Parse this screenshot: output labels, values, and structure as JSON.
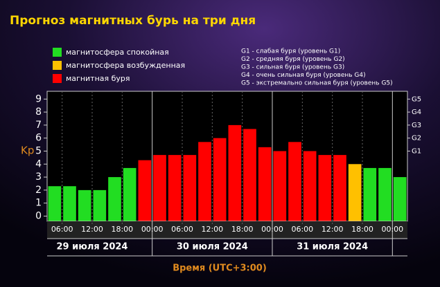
{
  "chart_data": {
    "type": "bar",
    "title": "Прогноз магнитных бурь на три дня",
    "ylabel": "Kp",
    "xlabel": "Время (UTC+3:00)",
    "legend": [
      {
        "name": "магнитосфера спокойная",
        "color": "#22dd22"
      },
      {
        "name": "магнитосфера возбужденная",
        "color": "#ffc000"
      },
      {
        "name": "магнитная буря",
        "color": "#ff0000"
      }
    ],
    "storm_levels": [
      "G1 - слабая буря (уровень G1)",
      "G2 - средняя буря (уровень G2)",
      "G3 - сильная буря (уровень G3)",
      "G4 - очень сильная буря (уровень G4)",
      "G5 - экстремально сильная буря (уровень G5)"
    ],
    "days": [
      "29 июля 2024",
      "30 июля 2024",
      "31 июля 2024"
    ],
    "values": [
      2.3,
      2.3,
      2.0,
      2.0,
      3.0,
      3.7,
      4.3,
      4.7,
      4.7,
      4.7,
      5.7,
      6.0,
      7.0,
      6.7,
      5.3,
      5.0,
      5.7,
      5.0,
      4.7,
      4.7,
      4.0,
      3.7,
      3.7,
      3.0
    ],
    "bar_colors": [
      "#22dd22",
      "#22dd22",
      "#22dd22",
      "#22dd22",
      "#22dd22",
      "#22dd22",
      "#ff0000",
      "#ff0000",
      "#ff0000",
      "#ff0000",
      "#ff0000",
      "#ff0000",
      "#ff0000",
      "#ff0000",
      "#ff0000",
      "#ff0000",
      "#ff0000",
      "#ff0000",
      "#ff0000",
      "#ff0000",
      "#ffc000",
      "#22dd22",
      "#22dd22",
      "#22dd22"
    ],
    "xlim": [
      3,
      75
    ],
    "xticks": [
      {
        "value": 6,
        "label": "06:00"
      },
      {
        "value": 12,
        "label": "12:00"
      },
      {
        "value": 18,
        "label": "18:00"
      },
      {
        "value": 24,
        "label": "00:00"
      },
      {
        "value": 30,
        "label": "06:00"
      },
      {
        "value": 36,
        "label": "12:00"
      },
      {
        "value": 42,
        "label": "18:00"
      },
      {
        "value": 48,
        "label": "00:00"
      },
      {
        "value": 54,
        "label": "06:00"
      },
      {
        "value": 60,
        "label": "12:00"
      },
      {
        "value": 66,
        "label": "18:00"
      },
      {
        "value": 72,
        "label": "00:00"
      }
    ],
    "ylim": [
      -0.4,
      9.6
    ],
    "yticks": [
      0,
      1,
      2,
      3,
      4,
      5,
      6,
      7,
      8,
      9
    ],
    "y2lim": [
      -0.4,
      9.6
    ],
    "y2ticks": [
      {
        "value": 5,
        "label": "G1"
      },
      {
        "value": 6,
        "label": "G2"
      },
      {
        "value": 7,
        "label": "G3"
      },
      {
        "value": 8,
        "label": "G4"
      },
      {
        "value": 9,
        "label": "G5"
      }
    ]
  }
}
